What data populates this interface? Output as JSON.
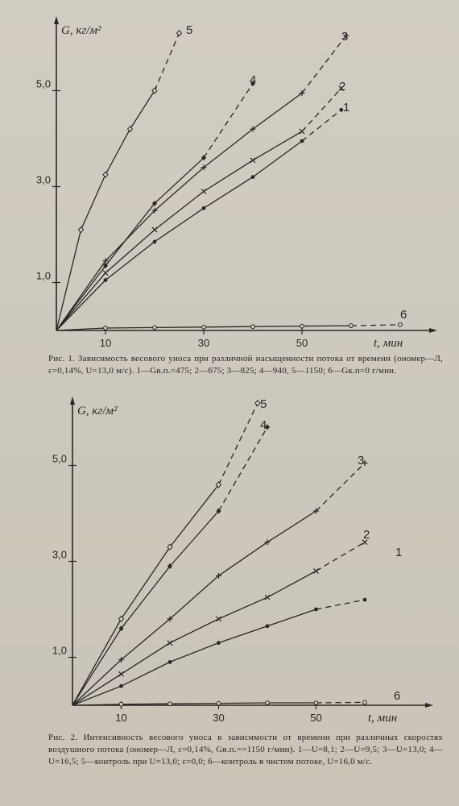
{
  "captions": {
    "fig1": "Рис. 1. Зависимость весового уноса при различной насыщенности потока от времени (ономер—Л, ε=0,14%, U=13,0 м/с). 1—Gв.п.=475; 2—675; 3—825; 4—940, 5—1150; 6—Gк.п=0 г/мин.",
    "fig2": "Рис. 2. Интенсивность весового уноса в зависимости от времени при различных скоростях воздушного потока (ономер—Л, ε=0,14%, Gв.п.==1150 г/мин). 1—U=8,1; 2—U=9,5; 3—U=13,0; 4—U=16,5; 5—контроль при U=13,0; ε=0,0; 6—контроль в чистом потоке, U=16,0 м/с."
  },
  "chart_data": [
    {
      "type": "line",
      "ylabel": "G, кг/м²",
      "xlabel": "t, мин",
      "xlim": [
        0,
        75
      ],
      "ylim": [
        0,
        6.3
      ],
      "xticks": [
        10,
        30,
        50
      ],
      "xtick_labels": [
        "10",
        "30",
        "50"
      ],
      "yticks": [
        1.0,
        3.0,
        5.0
      ],
      "ytick_labels": [
        "1,0",
        "3,0",
        "5,0"
      ],
      "series": [
        {
          "name": "1",
          "marker": "dot",
          "x": [
            0,
            10,
            20,
            30,
            40,
            50,
            58
          ],
          "y": [
            0,
            1.05,
            1.85,
            2.55,
            3.2,
            3.95,
            4.6
          ],
          "dash_from": 50
        },
        {
          "name": "2",
          "marker": "cross",
          "x": [
            0,
            10,
            20,
            30,
            40,
            50,
            58
          ],
          "y": [
            0,
            1.2,
            2.1,
            2.9,
            3.55,
            4.15,
            5.05
          ],
          "dash_from": 50
        },
        {
          "name": "3",
          "marker": "plus",
          "x": [
            0,
            10,
            20,
            30,
            40,
            50,
            59
          ],
          "y": [
            0,
            1.45,
            2.5,
            3.4,
            4.2,
            4.95,
            6.15
          ],
          "dash_from": 50
        },
        {
          "name": "4",
          "marker": "diamond-filled",
          "x": [
            0,
            10,
            20,
            30,
            40
          ],
          "y": [
            0,
            1.35,
            2.65,
            3.6,
            5.15
          ],
          "dash_from": 30
        },
        {
          "name": "5",
          "marker": "diamond-open",
          "x": [
            0,
            5,
            10,
            15,
            20,
            25
          ],
          "y": [
            0,
            2.1,
            3.25,
            4.2,
            5.0,
            6.2
          ],
          "dash_from": 20
        },
        {
          "name": "6",
          "marker": "circle-open",
          "x": [
            0,
            10,
            20,
            30,
            40,
            50,
            60,
            70
          ],
          "y": [
            0,
            0.05,
            0.06,
            0.07,
            0.08,
            0.09,
            0.1,
            0.12
          ],
          "dash_from": 60
        }
      ]
    },
    {
      "type": "line",
      "ylabel": "G, кг/м²",
      "xlabel": "t, мин",
      "xlim": [
        0,
        65
      ],
      "ylim": [
        0,
        6.3
      ],
      "xticks": [
        10,
        30,
        50
      ],
      "xtick_labels": [
        "10",
        "30",
        "50"
      ],
      "yticks": [
        1.0,
        3.0,
        5.0
      ],
      "ytick_labels": [
        "1,0",
        "3,0",
        "5,0"
      ],
      "series": [
        {
          "name": "1",
          "marker": "dot",
          "x": [
            0,
            10,
            20,
            30,
            40,
            50,
            60
          ],
          "y": [
            0,
            0.4,
            0.9,
            1.3,
            1.65,
            2.0,
            2.2
          ],
          "dash_from": 50
        },
        {
          "name": "2",
          "marker": "cross",
          "x": [
            0,
            10,
            20,
            30,
            40,
            50,
            60
          ],
          "y": [
            0,
            0.65,
            1.3,
            1.8,
            2.25,
            2.8,
            3.4
          ],
          "dash_from": 50
        },
        {
          "name": "3",
          "marker": "plus",
          "x": [
            0,
            10,
            20,
            30,
            40,
            50,
            60
          ],
          "y": [
            0,
            0.95,
            1.8,
            2.7,
            3.4,
            4.05,
            5.05
          ],
          "dash_from": 50
        },
        {
          "name": "4",
          "marker": "diamond-filled",
          "x": [
            0,
            10,
            20,
            30,
            40
          ],
          "y": [
            0,
            1.6,
            2.9,
            4.05,
            5.8
          ],
          "dash_from": 30
        },
        {
          "name": "5",
          "marker": "diamond-open",
          "x": [
            0,
            10,
            20,
            30,
            38
          ],
          "y": [
            0,
            1.8,
            3.3,
            4.6,
            6.3
          ],
          "dash_from": 30
        },
        {
          "name": "6",
          "marker": "circle-open",
          "x": [
            0,
            10,
            20,
            30,
            40,
            50,
            60
          ],
          "y": [
            0,
            0.02,
            0.03,
            0.04,
            0.05,
            0.05,
            0.06
          ],
          "dash_from": 50
        }
      ]
    }
  ]
}
